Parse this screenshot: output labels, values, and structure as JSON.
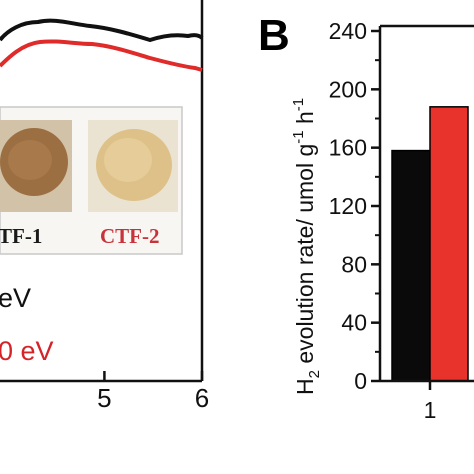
{
  "left_panel": {
    "x_tick_labels": [
      "5",
      "6"
    ],
    "x_ticks": [
      5,
      6
    ],
    "x_range_visible": [
      3.93,
      6.0
    ],
    "legend_lines": [
      {
        "text": "eV",
        "color": "#111111"
      },
      {
        "text": "0 eV",
        "color": "#d4242a"
      }
    ],
    "photo_labels": [
      {
        "text": "TF-1",
        "color": "#1a1a1a"
      },
      {
        "text": "CTF-2",
        "color": "#c8323a"
      }
    ],
    "series_colors": [
      "#111111",
      "#e02b2b"
    ]
  },
  "chart_data": {
    "type": "bar",
    "panel_label": "B",
    "categories": [
      "1"
    ],
    "series": [
      {
        "color": "#0a0a0a",
        "values": [
          158
        ]
      },
      {
        "color": "#e8332d",
        "values": [
          188
        ]
      }
    ],
    "ylabel_parts": {
      "h": "H",
      "sub2": "2",
      "rest": " evolution rate/ umol g",
      "sup1": "-1",
      "h2": " h",
      "sup2": "-1"
    },
    "y_tick_labels": [
      "0",
      "40",
      "80",
      "120",
      "160",
      "200",
      "240"
    ],
    "y_ticks": [
      0,
      40,
      80,
      120,
      160,
      200,
      240
    ],
    "ylim": [
      0,
      240
    ]
  }
}
